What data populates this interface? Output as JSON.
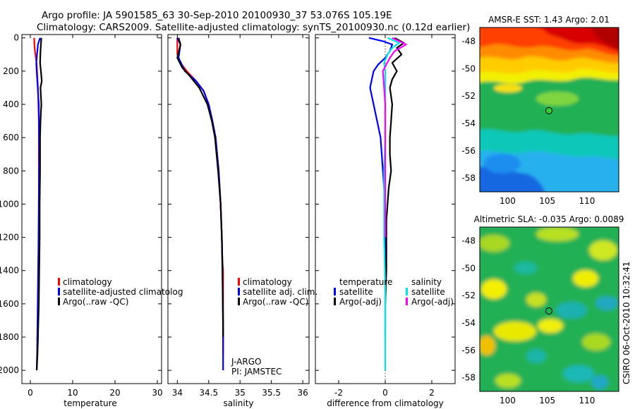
{
  "header": {
    "line1": "Argo profile: JA 5901585_63 30-Sep-2010 20100930_37 53.076S 105.19E",
    "line2": "Climatology: CARS2009. Satellite-adjusted climatology: synTS_20100930.nc (0.12d earlier)"
  },
  "side_label": "CSIRO 06-Oct-2010 10:32:41",
  "chart_data": [
    {
      "id": "temperature",
      "type": "line",
      "xlabel": "temperature",
      "ylabel": "",
      "xlim": [
        -2,
        31
      ],
      "ylim": [
        2080,
        -20
      ],
      "xticks": [
        0,
        10,
        20,
        30
      ],
      "yticks": [
        0,
        200,
        400,
        600,
        800,
        1000,
        1200,
        1400,
        1600,
        1800,
        2000
      ],
      "legend": [
        "climatology",
        "satellite-adjusted climatolog",
        "Argo(..raw -QC)"
      ],
      "legend_position": "lower-middle",
      "series": [
        {
          "name": "climatology",
          "color": "#ff0000",
          "x": [
            0.9,
            1.0,
            1.5,
            1.8,
            2.0,
            2.0,
            2.0,
            1.9,
            1.8,
            1.7,
            1.6
          ],
          "y": [
            0,
            60,
            160,
            300,
            500,
            800,
            1100,
            1400,
            1600,
            1800,
            1820
          ]
        },
        {
          "name": "satellite-adjusted climatology",
          "color": "#0000ff",
          "x": [
            2.3,
            1.8,
            1.4,
            1.5,
            2.0,
            2.1,
            2.0,
            1.9,
            1.8,
            1.7,
            1.6,
            1.5
          ],
          "y": [
            0,
            40,
            150,
            200,
            400,
            700,
            1000,
            1300,
            1500,
            1700,
            1900,
            2000
          ]
        },
        {
          "name": "Argo(..raw -QC)",
          "color": "#000000",
          "x": [
            2.6,
            2.5,
            2.4,
            2.3,
            2.5,
            2.7,
            2.4,
            2.6,
            2.4,
            2.3,
            2.3,
            2.2,
            2.2,
            2.1,
            2.0,
            1.9,
            1.8,
            1.7,
            1.5
          ],
          "y": [
            0,
            40,
            80,
            150,
            200,
            260,
            300,
            400,
            500,
            600,
            800,
            1000,
            1200,
            1400,
            1600,
            1700,
            1800,
            1900,
            2000
          ]
        }
      ]
    },
    {
      "id": "salinity",
      "type": "line",
      "xlabel": "salinity",
      "ylabel": "",
      "xlim": [
        33.85,
        36.1
      ],
      "ylim": [
        2080,
        -20
      ],
      "xticks": [
        34,
        34.5,
        35,
        35.5,
        36
      ],
      "yticks": [
        0,
        200,
        400,
        600,
        800,
        1000,
        1200,
        1400,
        1600,
        1800,
        2000
      ],
      "legend": [
        "climatology",
        "satellite adj. clim.",
        "Argo(..raw -QC)"
      ],
      "legend_position": "lower-middle",
      "annotations": [
        "J-ARGO",
        "PI: JAMSTEC"
      ],
      "series": [
        {
          "name": "climatology",
          "color": "#ff0000",
          "x": [
            34.0,
            34.0,
            34.05,
            34.15,
            34.3,
            34.42,
            34.5,
            34.56,
            34.61,
            34.66,
            34.69,
            34.71,
            34.72,
            34.73,
            34.73
          ],
          "y": [
            0,
            100,
            150,
            200,
            260,
            320,
            400,
            500,
            600,
            800,
            1000,
            1200,
            1350,
            1400,
            1900
          ]
        },
        {
          "name": "satellite adj. clim.",
          "color": "#0000ff",
          "x": [
            34.0,
            34.05,
            34.02,
            34.12,
            34.3,
            34.42,
            34.5,
            34.56,
            34.61,
            34.66,
            34.69,
            34.71,
            34.72,
            34.73,
            34.73
          ],
          "y": [
            0,
            40,
            120,
            200,
            260,
            320,
            400,
            500,
            600,
            800,
            1000,
            1200,
            1400,
            1700,
            2000
          ]
        },
        {
          "name": "Argo(..raw -QC)",
          "color": "#000000",
          "x": [
            34.02,
            34.05,
            34.0,
            34.08,
            34.2,
            34.35,
            34.48,
            34.55,
            34.6,
            34.65,
            34.69,
            34.71,
            34.72,
            34.73
          ],
          "y": [
            0,
            40,
            120,
            180,
            230,
            300,
            400,
            500,
            600,
            800,
            1000,
            1200,
            1400,
            1800
          ]
        }
      ]
    },
    {
      "id": "difference",
      "type": "line",
      "xlabel": "difference from climatology",
      "ylabel": "",
      "xlim": [
        -3,
        3
      ],
      "ylim": [
        2080,
        -20
      ],
      "xticks": [
        -2,
        0,
        2
      ],
      "yticks": [
        0,
        200,
        400,
        600,
        800,
        1000,
        1200,
        1400,
        1600,
        1800,
        2000
      ],
      "legend_headers": [
        "temperature",
        "salinity"
      ],
      "legend": [
        "satellite",
        "Argo(-adj)",
        "satellite",
        "Argo(-adj)"
      ],
      "legend_position": "lower-middle",
      "series": [
        {
          "name": "temperature satellite",
          "color": "#0000ff",
          "x": [
            -0.7,
            -0.1,
            0.3,
            0.2,
            0.0,
            -0.3,
            -0.5,
            -0.65,
            -0.5,
            -0.35,
            -0.2,
            -0.1,
            0.0,
            0.0,
            0.0,
            0.0,
            0.0
          ],
          "y": [
            0,
            20,
            40,
            80,
            120,
            160,
            200,
            300,
            400,
            500,
            600,
            800,
            1000,
            1200,
            1400,
            1600,
            1800
          ]
        },
        {
          "name": "temperature Argo(-adj)",
          "color": "#000000",
          "x": [
            0.4,
            0.8,
            0.5,
            0.7,
            0.3,
            0.5,
            0.3,
            0.2,
            0.3,
            0.25,
            0.2,
            0.2,
            0.25,
            0.15,
            0.1,
            0.05,
            0.05,
            0.05,
            0.0
          ],
          "y": [
            0,
            30,
            60,
            100,
            150,
            200,
            250,
            300,
            400,
            500,
            600,
            700,
            800,
            900,
            1000,
            1100,
            1200,
            1400,
            1600
          ]
        },
        {
          "name": "salinity satellite",
          "color": "#00e5e5",
          "x": [
            0.1,
            0.6,
            0.3,
            0.1,
            -0.05,
            0.0,
            0.0,
            0.0,
            0.0,
            -0.05,
            -0.05,
            -0.05,
            0.0,
            0.0,
            0.0
          ],
          "y": [
            0,
            30,
            60,
            100,
            150,
            200,
            300,
            400,
            600,
            800,
            1000,
            1200,
            1500,
            1800,
            2000
          ]
        },
        {
          "name": "salinity Argo(-adj)",
          "color": "#ff00ff",
          "x": [
            0.3,
            0.9,
            0.4,
            0.2,
            0.05,
            -0.1,
            -0.05,
            0.0,
            0.0,
            0.0,
            0.0,
            0.0
          ],
          "y": [
            0,
            40,
            80,
            120,
            160,
            200,
            300,
            400,
            600,
            800,
            1000,
            1200
          ]
        }
      ]
    },
    {
      "id": "sst-map",
      "type": "heatmap",
      "title": "AMSR-E SST: 1.43 Argo: 2.01",
      "xlim": [
        96.5,
        114
      ],
      "ylim": [
        -59,
        -47
      ],
      "xticks": [
        100,
        105,
        110
      ],
      "yticks": [
        -48,
        -50,
        -52,
        -54,
        -56,
        -58
      ],
      "marker": {
        "lon": 105.19,
        "lat": -53.076
      }
    },
    {
      "id": "sla-map",
      "type": "heatmap",
      "title": "Altimetric SLA: -0.035 Argo: 0.0089",
      "xlim": [
        96.5,
        114
      ],
      "ylim": [
        -59,
        -47
      ],
      "xticks": [
        100,
        105,
        110
      ],
      "yticks": [
        -48,
        -50,
        -52,
        -54,
        -56,
        -58
      ],
      "marker": {
        "lon": 105.19,
        "lat": -53.076
      }
    }
  ]
}
